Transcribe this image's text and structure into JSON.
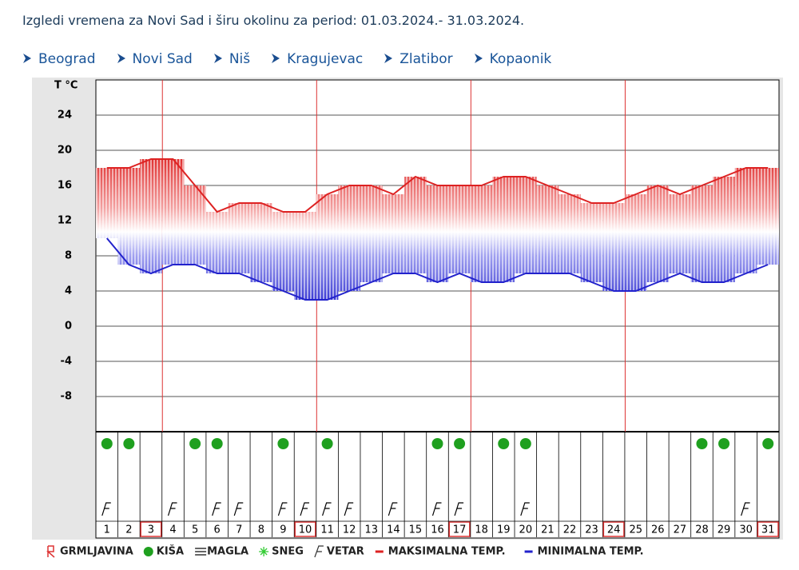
{
  "header": {
    "title": "Izgledi vremena za Novi Sad i širu okolinu za period: 01.03.2024.- 31.03.2024."
  },
  "nav": [
    "Beograd",
    "Novi Sad",
    "Niš",
    "Kragujevac",
    "Zlatibor",
    "Kopaonik"
  ],
  "chart_data": {
    "type": "band",
    "ylabel": "T °C",
    "categories": [
      "1",
      "2",
      "3",
      "4",
      "5",
      "6",
      "7",
      "8",
      "9",
      "10",
      "11",
      "12",
      "13",
      "14",
      "15",
      "16",
      "17",
      "18",
      "19",
      "20",
      "21",
      "22",
      "23",
      "24",
      "25",
      "26",
      "27",
      "28",
      "29",
      "30",
      "31"
    ],
    "series": [
      {
        "name": "MAKSIMALNA TEMP.",
        "color": "#dd2222",
        "values": [
          18,
          18,
          19,
          19,
          16,
          13,
          14,
          14,
          13,
          13,
          15,
          16,
          16,
          15,
          17,
          16,
          16,
          16,
          17,
          17,
          16,
          15,
          14,
          14,
          15,
          16,
          15,
          16,
          17,
          18,
          18
        ]
      },
      {
        "name": "MINIMALNA TEMP.",
        "color": "#2222cc",
        "values": [
          10,
          7,
          6,
          7,
          7,
          6,
          6,
          5,
          4,
          3,
          3,
          4,
          5,
          6,
          6,
          5,
          6,
          5,
          5,
          6,
          6,
          6,
          5,
          4,
          4,
          5,
          6,
          5,
          5,
          6,
          7
        ]
      }
    ],
    "rain": [
      true,
      true,
      false,
      false,
      true,
      true,
      false,
      false,
      true,
      false,
      true,
      false,
      false,
      false,
      false,
      true,
      true,
      false,
      true,
      true,
      false,
      false,
      false,
      false,
      false,
      false,
      false,
      true,
      true,
      false,
      true
    ],
    "wind": [
      true,
      false,
      false,
      true,
      false,
      true,
      true,
      false,
      true,
      true,
      true,
      true,
      false,
      true,
      false,
      true,
      true,
      false,
      false,
      true,
      false,
      false,
      false,
      false,
      false,
      false,
      false,
      false,
      false,
      true,
      false
    ],
    "highlighted": [
      false,
      false,
      true,
      false,
      false,
      false,
      false,
      false,
      false,
      true,
      false,
      false,
      false,
      false,
      false,
      false,
      true,
      false,
      false,
      false,
      false,
      false,
      false,
      true,
      false,
      false,
      false,
      false,
      false,
      false,
      true
    ],
    "ylim": [
      -12,
      28
    ],
    "yticks": [
      -8,
      -4,
      0,
      4,
      8,
      12,
      16,
      20,
      24
    ],
    "grid": true,
    "legend": [
      "GRMLJAVINA",
      "KIŠA",
      "MAGLA",
      "SNEG",
      "VETAR"
    ]
  }
}
